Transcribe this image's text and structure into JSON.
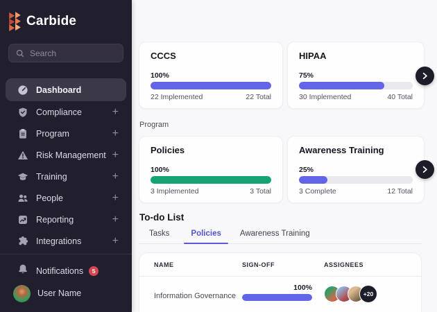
{
  "colors": {
    "accent_purple": "#6365e8",
    "success_green": "#16a374",
    "badge_red": "#d84552",
    "sidebar_bg": "#211f2e",
    "active_item_bg": "#3b3847",
    "dark_circle_button": "#1d1c29",
    "main_bg": "#f8f8fa"
  },
  "sidebar": {
    "brand": "Carbide",
    "search": {
      "placeholder": "Search",
      "icon": "magnifier"
    },
    "items": [
      {
        "label": "Dashboard",
        "icon": "gauge",
        "active": true,
        "expandable": false
      },
      {
        "label": "Compliance",
        "icon": "shield-check",
        "active": false,
        "expandable": true,
        "expand_glyph": "+"
      },
      {
        "label": "Program",
        "icon": "clipboard",
        "active": false,
        "expandable": true,
        "expand_glyph": "+"
      },
      {
        "label": "Risk Management",
        "icon": "warning-triangle",
        "active": false,
        "expandable": true,
        "expand_glyph": "+"
      },
      {
        "label": "Training",
        "icon": "graduation-cap",
        "active": false,
        "expandable": true,
        "expand_glyph": "+"
      },
      {
        "label": "People",
        "icon": "people",
        "active": false,
        "expandable": true,
        "expand_glyph": "+"
      },
      {
        "label": "Reporting",
        "icon": "trend-chart",
        "active": false,
        "expandable": true,
        "expand_glyph": "+"
      },
      {
        "label": "Integrations",
        "icon": "puzzle-piece",
        "active": false,
        "expandable": true,
        "expand_glyph": "+"
      }
    ],
    "notifications": {
      "label": "Notifications",
      "badge": "5",
      "icon": "bell"
    },
    "user": {
      "label": "User Name",
      "icon": "avatar-photo"
    }
  },
  "chart_data": [
    {
      "type": "bar",
      "title": "CCCS",
      "categories": [
        "Implemented"
      ],
      "values": [
        100
      ],
      "unit": "%",
      "implemented": 22,
      "total": 22
    },
    {
      "type": "bar",
      "title": "HIPAA",
      "categories": [
        "Implemented"
      ],
      "values": [
        75
      ],
      "unit": "%",
      "implemented": 30,
      "total": 40
    },
    {
      "type": "bar",
      "title": "Policies",
      "categories": [
        "Implemented"
      ],
      "values": [
        100
      ],
      "unit": "%",
      "implemented": 3,
      "total": 3
    },
    {
      "type": "bar",
      "title": "Awareness Training",
      "categories": [
        "Complete"
      ],
      "values": [
        25
      ],
      "unit": "%",
      "complete": 3,
      "total": 12
    }
  ],
  "compliance_cards": [
    {
      "title": "CCCS",
      "percent": "100%",
      "value": 100,
      "left": "22 Implemented",
      "right": "22 Total",
      "bar_color": "#6365e8"
    },
    {
      "title": "HIPAA",
      "percent": "75%",
      "value": 75,
      "left": "30 Implemented",
      "right": "40 Total",
      "bar_color": "#6365e8"
    }
  ],
  "program": {
    "label": "Program",
    "cards": [
      {
        "title": "Policies",
        "percent": "100%",
        "value": 100,
        "left": "3 Implemented",
        "right": "3 Total",
        "bar_color": "#16a374"
      },
      {
        "title": "Awareness Training",
        "percent": "25%",
        "value": 25,
        "left": "3 Complete",
        "right": "12 Total",
        "bar_color": "#6365e8"
      }
    ]
  },
  "carousel": {
    "next_icon": "chevron-right"
  },
  "todo": {
    "title": "To-do List",
    "tabs": [
      {
        "label": "Tasks",
        "active": false
      },
      {
        "label": "Policies",
        "active": true
      },
      {
        "label": "Awareness Training",
        "active": false
      }
    ],
    "table": {
      "headers": [
        "NAME",
        "SIGN-OFF",
        "ASSIGNEES"
      ],
      "rows": [
        {
          "name": "Information Governance",
          "signoff_percent": "100%",
          "signoff_value": 100,
          "assignee_avatars": 3,
          "assignees_more": "+20"
        }
      ]
    }
  }
}
